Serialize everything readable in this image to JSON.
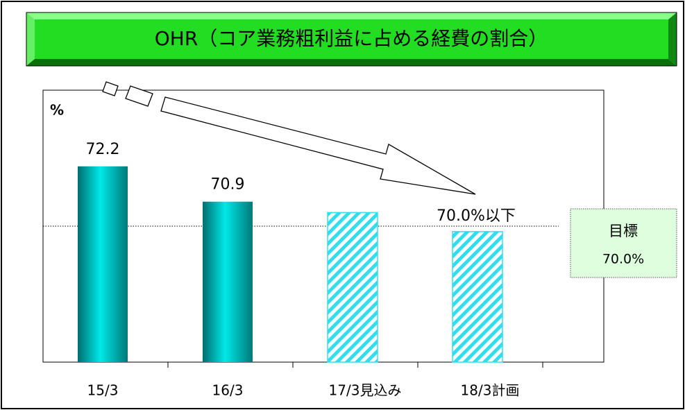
{
  "chart_data": {
    "type": "bar",
    "title": "OHR（コア業務粗利益に占める経費の割合）",
    "y_label": "%",
    "categories": [
      "15/3",
      "16/3",
      "17/3見込み",
      "18/3計画"
    ],
    "series": [
      {
        "name": null,
        "colors": [
          "#00c0c0",
          "#00c0c0",
          "#33ddee",
          "#33ddee"
        ],
        "hatched": [
          false,
          false,
          true,
          true
        ],
        "values": [
          72.2,
          70.9,
          70.5,
          69.8
        ],
        "value_labels": [
          "72.2",
          "70.9",
          null,
          null
        ]
      }
    ],
    "ylim": [
      65,
      75
    ],
    "annotation": "70.0%以下",
    "target": {
      "label": "目標",
      "value": 70,
      "value_label": "70.0%"
    }
  }
}
